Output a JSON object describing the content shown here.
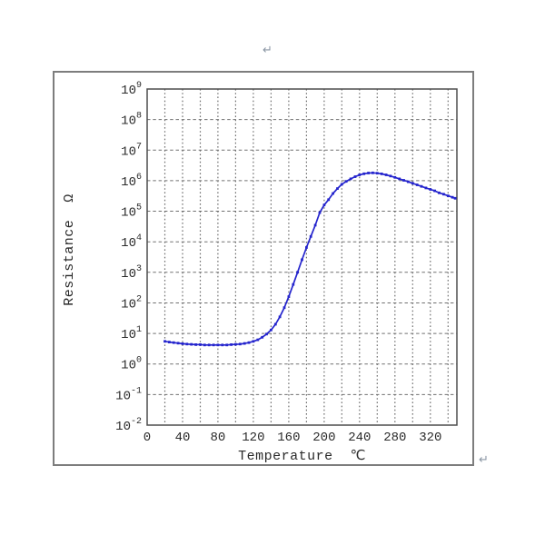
{
  "page": {
    "background": "#ffffff",
    "paragraph_mark_top": "↵",
    "paragraph_mark_bottom": "↵"
  },
  "chart_data": {
    "type": "line",
    "title": "",
    "xlabel": "Temperature",
    "xlabel_unit": "℃",
    "ylabel": "Resistance",
    "ylabel_unit": "Ω",
    "xlim": [
      0,
      350
    ],
    "x_major_ticks": [
      0,
      40,
      80,
      120,
      160,
      200,
      240,
      280,
      320
    ],
    "x_grid_step": 20,
    "y_scale": "log",
    "ylim": [
      0.01,
      1000000000
    ],
    "y_exponent_ticks": [
      9,
      8,
      7,
      6,
      5,
      4,
      3,
      2,
      1,
      0,
      -1,
      -2
    ],
    "grid": "on",
    "legend": "none",
    "marker": "square",
    "colors": {
      "curve": "#2424cd",
      "grid": "#707070",
      "frame": "#4d4d4d",
      "text": "#2a2a2a"
    },
    "series": [
      {
        "name": "resistance-vs-temperature",
        "x": [
          20,
          25,
          30,
          35,
          40,
          45,
          50,
          55,
          60,
          65,
          70,
          75,
          80,
          85,
          90,
          95,
          100,
          105,
          110,
          115,
          120,
          125,
          130,
          135,
          140,
          145,
          150,
          155,
          160,
          165,
          170,
          175,
          180,
          185,
          190,
          195,
          200,
          205,
          210,
          215,
          220,
          225,
          230,
          235,
          240,
          245,
          250,
          255,
          260,
          265,
          270,
          275,
          280,
          285,
          290,
          295,
          300,
          305,
          310,
          315,
          320,
          325,
          330,
          335,
          340,
          345,
          348
        ],
        "y": [
          5.5,
          5.2,
          5.0,
          4.8,
          4.6,
          4.5,
          4.4,
          4.3,
          4.3,
          4.2,
          4.2,
          4.2,
          4.2,
          4.2,
          4.2,
          4.3,
          4.4,
          4.5,
          4.7,
          5.0,
          5.5,
          6.2,
          7.5,
          9.5,
          13,
          20,
          35,
          70,
          160,
          400,
          1000,
          2600,
          6500,
          15000,
          35000,
          90000,
          160000,
          240000,
          380000,
          550000,
          760000,
          950000,
          1150000,
          1350000,
          1550000,
          1680000,
          1780000,
          1800000,
          1760000,
          1670000,
          1550000,
          1420000,
          1280000,
          1150000,
          1030000,
          920000,
          820000,
          730000,
          650000,
          580000,
          520000,
          465000,
          400000,
          360000,
          320000,
          285000,
          265000
        ]
      }
    ]
  }
}
